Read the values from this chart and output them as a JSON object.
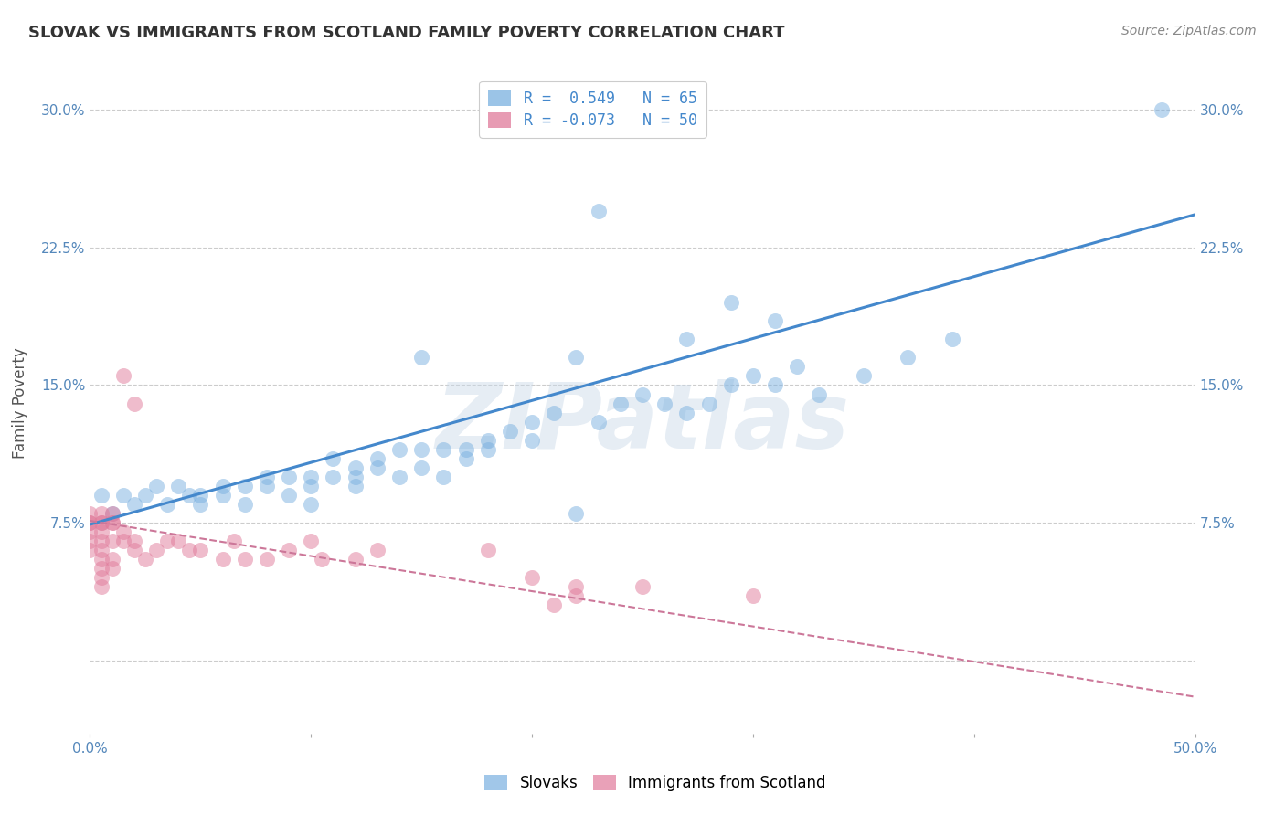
{
  "title": "SLOVAK VS IMMIGRANTS FROM SCOTLAND FAMILY POVERTY CORRELATION CHART",
  "source": "Source: ZipAtlas.com",
  "xlabel": "",
  "ylabel": "Family Poverty",
  "watermark": "ZIPatlas",
  "xlim": [
    0.0,
    0.5
  ],
  "ylim": [
    -0.04,
    0.32
  ],
  "yticks": [
    0.0,
    0.075,
    0.15,
    0.225,
    0.3
  ],
  "ytick_labels": [
    "",
    "7.5%",
    "15.0%",
    "22.5%",
    "30.0%"
  ],
  "xticks": [
    0.0,
    0.1,
    0.2,
    0.3,
    0.4,
    0.5
  ],
  "xtick_labels": [
    "0.0%",
    "",
    "",
    "",
    "",
    "50.0%"
  ],
  "legend_entries": [
    {
      "label": "R =  0.549   N = 65",
      "color": "#7ab0e0"
    },
    {
      "label": "R = -0.073   N = 50",
      "color": "#e07a9a"
    }
  ],
  "legend_labels": [
    "Slovaks",
    "Immigrants from Scotland"
  ],
  "blue_color": "#7ab0e0",
  "pink_color": "#e07a9a",
  "blue_line_color": "#4488cc",
  "pink_line_color": "#cc7799",
  "background_color": "#ffffff",
  "grid_color": "#cccccc",
  "tick_label_color": "#5588bb",
  "title_color": "#333333",
  "blue_line_x0": 0.0,
  "blue_line_y0": 0.074,
  "blue_line_x1": 0.5,
  "blue_line_y1": 0.243,
  "pink_line_x0": 0.0,
  "pink_line_y0": 0.076,
  "pink_line_x1": 0.5,
  "pink_line_y1": -0.02,
  "blue_scatter_x": [
    0.005,
    0.01,
    0.015,
    0.02,
    0.025,
    0.03,
    0.035,
    0.04,
    0.045,
    0.05,
    0.05,
    0.06,
    0.06,
    0.07,
    0.07,
    0.08,
    0.08,
    0.09,
    0.09,
    0.1,
    0.1,
    0.1,
    0.11,
    0.11,
    0.12,
    0.12,
    0.12,
    0.13,
    0.13,
    0.14,
    0.14,
    0.15,
    0.15,
    0.16,
    0.16,
    0.17,
    0.17,
    0.18,
    0.18,
    0.19,
    0.2,
    0.2,
    0.21,
    0.22,
    0.23,
    0.24,
    0.25,
    0.26,
    0.27,
    0.28,
    0.29,
    0.3,
    0.31,
    0.32,
    0.33,
    0.35,
    0.37,
    0.39,
    0.22,
    0.15,
    0.27,
    0.29,
    0.31,
    0.485,
    0.23
  ],
  "blue_scatter_y": [
    0.09,
    0.08,
    0.09,
    0.085,
    0.09,
    0.095,
    0.085,
    0.095,
    0.09,
    0.085,
    0.09,
    0.095,
    0.09,
    0.095,
    0.085,
    0.1,
    0.095,
    0.1,
    0.09,
    0.1,
    0.095,
    0.085,
    0.1,
    0.11,
    0.1,
    0.105,
    0.095,
    0.11,
    0.105,
    0.115,
    0.1,
    0.115,
    0.105,
    0.115,
    0.1,
    0.115,
    0.11,
    0.12,
    0.115,
    0.125,
    0.13,
    0.12,
    0.135,
    0.08,
    0.13,
    0.14,
    0.145,
    0.14,
    0.135,
    0.14,
    0.15,
    0.155,
    0.15,
    0.16,
    0.145,
    0.155,
    0.165,
    0.175,
    0.165,
    0.165,
    0.175,
    0.195,
    0.185,
    0.3,
    0.245
  ],
  "pink_scatter_x": [
    0.0,
    0.0,
    0.0,
    0.0,
    0.0,
    0.0,
    0.005,
    0.005,
    0.005,
    0.005,
    0.005,
    0.005,
    0.005,
    0.005,
    0.005,
    0.005,
    0.01,
    0.01,
    0.01,
    0.01,
    0.01,
    0.01,
    0.015,
    0.015,
    0.02,
    0.02,
    0.025,
    0.03,
    0.035,
    0.04,
    0.045,
    0.05,
    0.06,
    0.065,
    0.07,
    0.08,
    0.09,
    0.1,
    0.105,
    0.12,
    0.13,
    0.015,
    0.02,
    0.25,
    0.18,
    0.2,
    0.22,
    0.3,
    0.22,
    0.21
  ],
  "pink_scatter_y": [
    0.075,
    0.08,
    0.075,
    0.07,
    0.065,
    0.06,
    0.075,
    0.08,
    0.075,
    0.07,
    0.065,
    0.06,
    0.055,
    0.05,
    0.045,
    0.04,
    0.075,
    0.08,
    0.075,
    0.065,
    0.055,
    0.05,
    0.065,
    0.07,
    0.065,
    0.06,
    0.055,
    0.06,
    0.065,
    0.065,
    0.06,
    0.06,
    0.055,
    0.065,
    0.055,
    0.055,
    0.06,
    0.065,
    0.055,
    0.055,
    0.06,
    0.155,
    0.14,
    0.04,
    0.06,
    0.045,
    0.04,
    0.035,
    0.035,
    0.03
  ]
}
